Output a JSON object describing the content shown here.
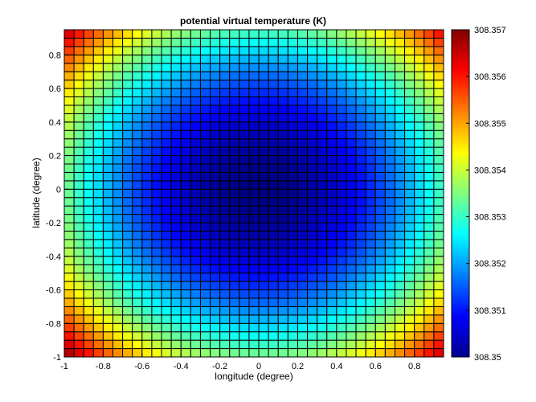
{
  "chart_data": {
    "type": "heatmap",
    "title": "potential virtual temperature (K)",
    "xlabel": "longitude (degree)",
    "ylabel": "latitude (degree)",
    "xlim": [
      -1,
      0.95
    ],
    "ylim": [
      -1,
      0.95
    ],
    "x_ticks": [
      "-1",
      "-0.8",
      "-0.6",
      "-0.4",
      "-0.2",
      "0",
      "0.2",
      "0.4",
      "0.6",
      "0.8"
    ],
    "y_ticks": [
      "-1",
      "-0.8",
      "-0.6",
      "-0.4",
      "-0.2",
      "0",
      "0.2",
      "0.4",
      "0.6",
      "0.8"
    ],
    "x_tick_values": [
      -1,
      -0.8,
      -0.6,
      -0.4,
      -0.2,
      0,
      0.2,
      0.4,
      0.6,
      0.8
    ],
    "y_tick_values": [
      -1,
      -0.8,
      -0.6,
      -0.4,
      -0.2,
      0,
      0.2,
      0.4,
      0.6,
      0.8
    ],
    "grid_cell_size": 0.05,
    "field": {
      "description_of_values": "cell value ≈ 308.35 + 0.0035*(x^2 + y^2), clipped to colorbar range",
      "min_value": 308.35,
      "center_value": 308.35,
      "corner_value": 308.357
    },
    "colorbar": {
      "min": 308.35,
      "max": 308.357,
      "ticks": [
        "308.35",
        "308.351",
        "308.352",
        "308.353",
        "308.354",
        "308.355",
        "308.356",
        "308.357"
      ],
      "tick_values": [
        308.35,
        308.351,
        308.352,
        308.353,
        308.354,
        308.355,
        308.356,
        308.357
      ],
      "colormap": "jet"
    },
    "grid": true
  }
}
